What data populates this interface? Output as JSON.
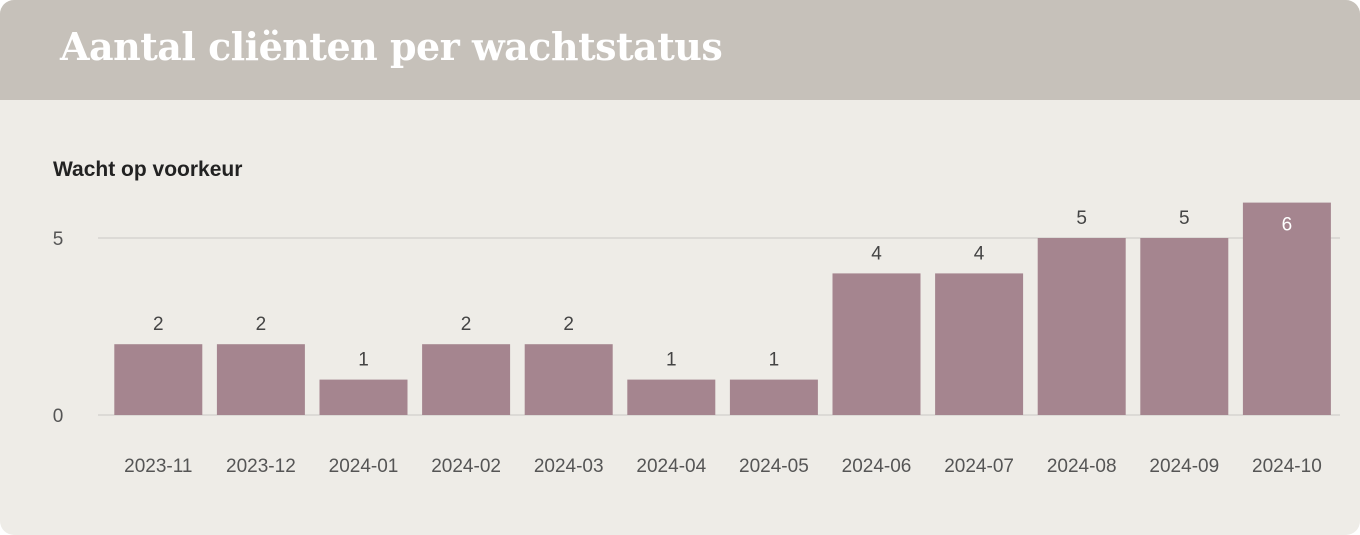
{
  "header": {
    "title": "Aantal cliënten per wachtstatus"
  },
  "chart_data": {
    "type": "bar",
    "title": "Wacht op voorkeur",
    "categories": [
      "2023-11",
      "2023-12",
      "2024-01",
      "2024-02",
      "2024-03",
      "2024-04",
      "2024-05",
      "2024-06",
      "2024-07",
      "2024-08",
      "2024-09",
      "2024-10"
    ],
    "values": [
      2,
      2,
      1,
      2,
      2,
      1,
      1,
      4,
      4,
      5,
      5,
      6
    ],
    "yticks": [
      0,
      5
    ],
    "ylim": [
      0,
      6
    ],
    "grid": true,
    "colors": {
      "bar": "#a5858f",
      "grid": "#d6d4d0",
      "header": "#c6c1ba",
      "background": "#eeece7"
    }
  }
}
